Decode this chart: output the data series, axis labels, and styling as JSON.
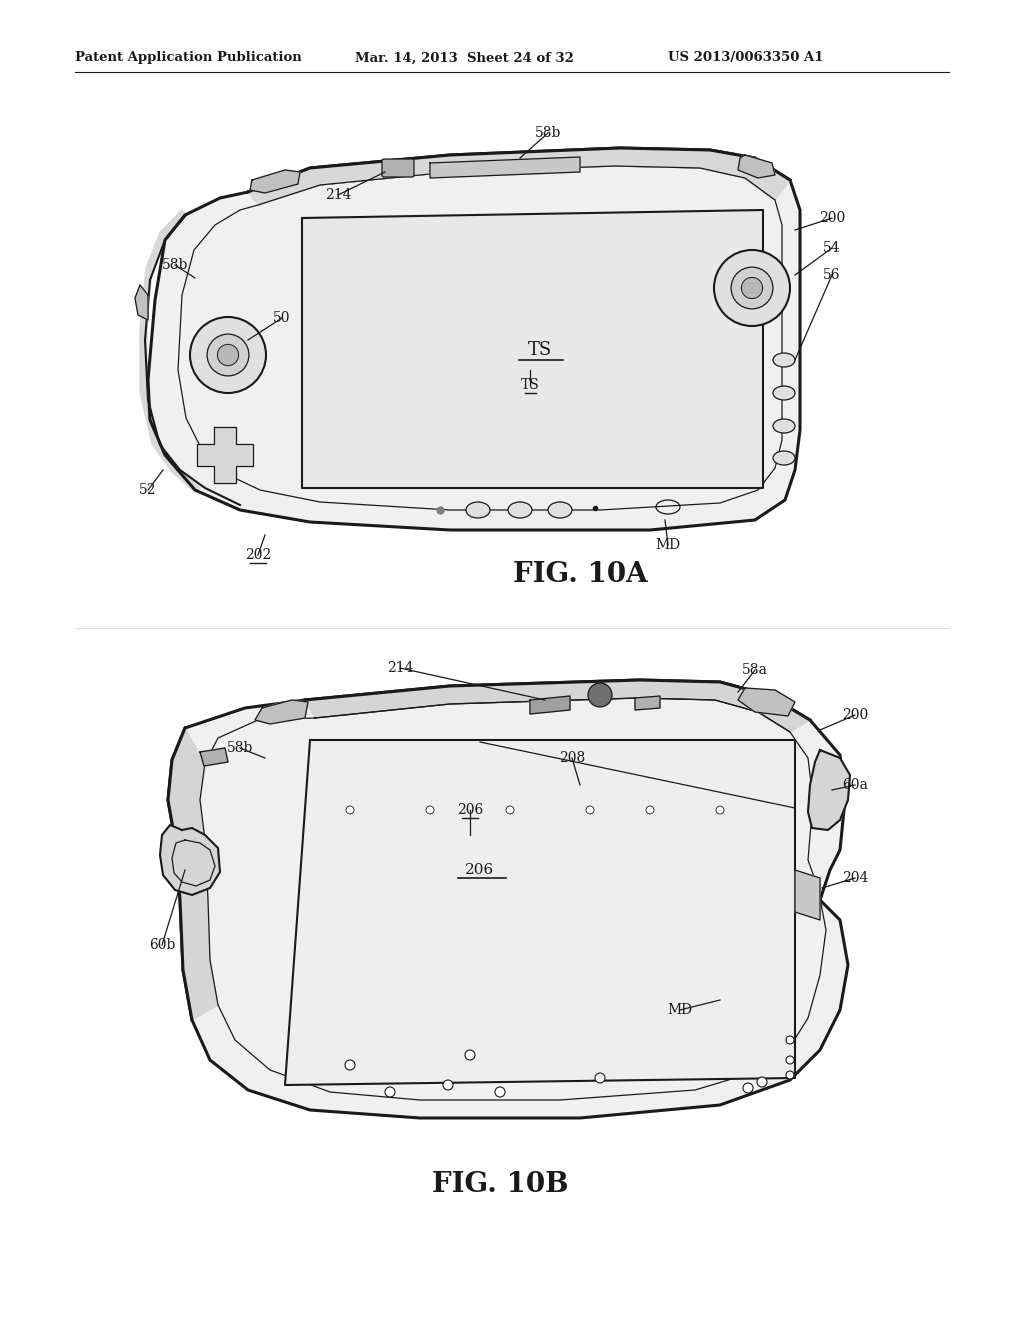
{
  "bg_color": "#ffffff",
  "line_color": "#1a1a1a",
  "header_text": "Patent Application Publication",
  "header_date": "Mar. 14, 2013  Sheet 24 of 32",
  "header_patent": "US 2013/0063350 A1",
  "fig10a_label": "FIG. 10A",
  "fig10b_label": "FIG. 10B"
}
